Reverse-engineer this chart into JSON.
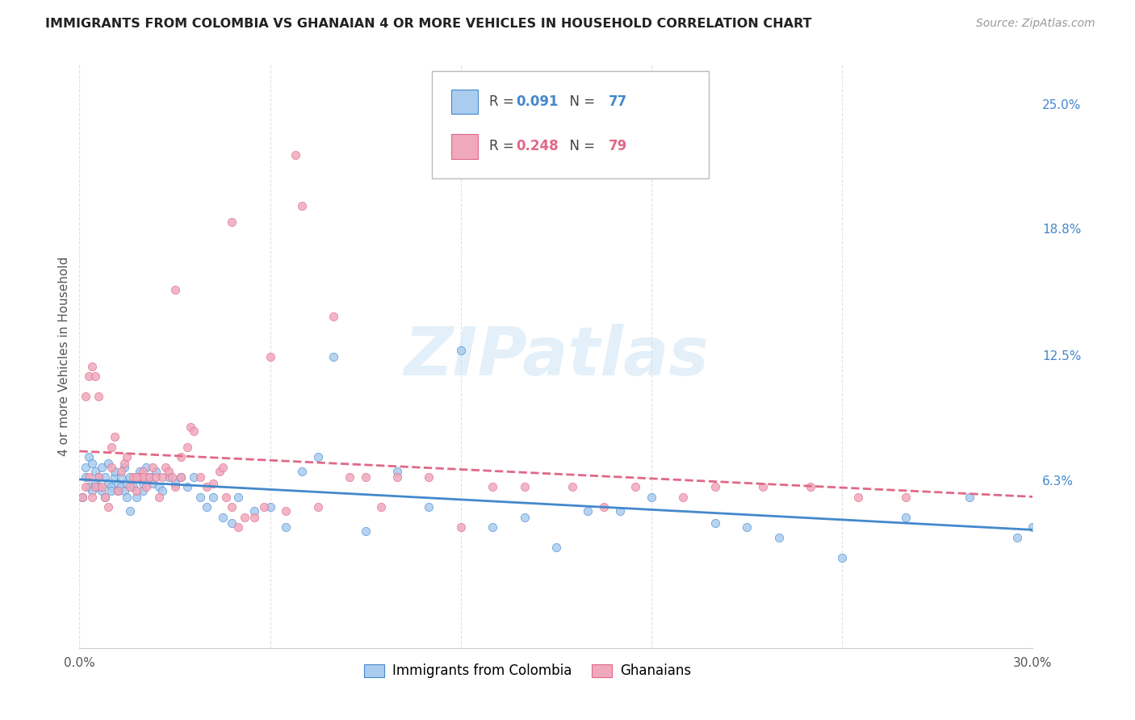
{
  "title": "IMMIGRANTS FROM COLOMBIA VS GHANAIAN 4 OR MORE VEHICLES IN HOUSEHOLD CORRELATION CHART",
  "source": "Source: ZipAtlas.com",
  "ylabel": "4 or more Vehicles in Household",
  "xlim": [
    0.0,
    0.3
  ],
  "ylim": [
    -0.02,
    0.27
  ],
  "ytick_labels": [
    "6.3%",
    "12.5%",
    "18.8%",
    "25.0%"
  ],
  "ytick_values": [
    0.063,
    0.125,
    0.188,
    0.25
  ],
  "xtick_labels": [
    "0.0%",
    "",
    "",
    "",
    "",
    "30.0%"
  ],
  "xtick_values": [
    0.0,
    0.06,
    0.12,
    0.18,
    0.24,
    0.3
  ],
  "colombia_R": 0.091,
  "colombia_N": 77,
  "ghana_R": 0.248,
  "ghana_N": 79,
  "colombia_color": "#aaccee",
  "ghana_color": "#f0a8bc",
  "colombia_line_color": "#4488cc",
  "ghana_line_color": "#e06888",
  "watermark": "ZIPatlas",
  "colombia_scatter_x": [
    0.001,
    0.002,
    0.002,
    0.003,
    0.003,
    0.004,
    0.004,
    0.005,
    0.005,
    0.006,
    0.006,
    0.007,
    0.007,
    0.008,
    0.008,
    0.009,
    0.009,
    0.01,
    0.01,
    0.011,
    0.011,
    0.012,
    0.012,
    0.013,
    0.013,
    0.014,
    0.014,
    0.015,
    0.015,
    0.016,
    0.016,
    0.017,
    0.018,
    0.019,
    0.02,
    0.02,
    0.021,
    0.022,
    0.023,
    0.024,
    0.025,
    0.026,
    0.028,
    0.03,
    0.032,
    0.034,
    0.036,
    0.038,
    0.04,
    0.042,
    0.045,
    0.048,
    0.05,
    0.055,
    0.06,
    0.065,
    0.07,
    0.08,
    0.09,
    0.1,
    0.11,
    0.12,
    0.13,
    0.15,
    0.17,
    0.2,
    0.21,
    0.24,
    0.26,
    0.28,
    0.295,
    0.3,
    0.22,
    0.18,
    0.16,
    0.14,
    0.075
  ],
  "colombia_scatter_y": [
    0.055,
    0.065,
    0.07,
    0.06,
    0.075,
    0.058,
    0.072,
    0.062,
    0.068,
    0.06,
    0.065,
    0.058,
    0.07,
    0.055,
    0.065,
    0.062,
    0.072,
    0.06,
    0.058,
    0.065,
    0.068,
    0.062,
    0.058,
    0.06,
    0.065,
    0.058,
    0.07,
    0.055,
    0.062,
    0.048,
    0.065,
    0.06,
    0.055,
    0.068,
    0.062,
    0.058,
    0.07,
    0.065,
    0.062,
    0.068,
    0.06,
    0.058,
    0.065,
    0.062,
    0.065,
    0.06,
    0.065,
    0.055,
    0.05,
    0.055,
    0.045,
    0.042,
    0.055,
    0.048,
    0.05,
    0.04,
    0.068,
    0.125,
    0.038,
    0.068,
    0.05,
    0.128,
    0.04,
    0.03,
    0.048,
    0.042,
    0.04,
    0.025,
    0.045,
    0.055,
    0.035,
    0.04,
    0.035,
    0.055,
    0.048,
    0.045,
    0.075
  ],
  "ghana_scatter_x": [
    0.001,
    0.002,
    0.002,
    0.003,
    0.003,
    0.004,
    0.004,
    0.005,
    0.005,
    0.006,
    0.006,
    0.007,
    0.008,
    0.009,
    0.01,
    0.01,
    0.011,
    0.012,
    0.013,
    0.014,
    0.015,
    0.016,
    0.017,
    0.018,
    0.019,
    0.02,
    0.02,
    0.021,
    0.022,
    0.023,
    0.024,
    0.025,
    0.026,
    0.027,
    0.028,
    0.029,
    0.03,
    0.03,
    0.032,
    0.034,
    0.035,
    0.036,
    0.038,
    0.04,
    0.042,
    0.044,
    0.045,
    0.046,
    0.048,
    0.05,
    0.052,
    0.055,
    0.058,
    0.06,
    0.065,
    0.068,
    0.07,
    0.075,
    0.08,
    0.085,
    0.09,
    0.095,
    0.1,
    0.11,
    0.12,
    0.13,
    0.14,
    0.155,
    0.165,
    0.175,
    0.19,
    0.2,
    0.215,
    0.23,
    0.245,
    0.26,
    0.048,
    0.032,
    0.018
  ],
  "ghana_scatter_y": [
    0.055,
    0.06,
    0.105,
    0.065,
    0.115,
    0.12,
    0.055,
    0.06,
    0.115,
    0.065,
    0.105,
    0.06,
    0.055,
    0.05,
    0.07,
    0.08,
    0.085,
    0.058,
    0.068,
    0.072,
    0.075,
    0.06,
    0.065,
    0.058,
    0.065,
    0.068,
    0.065,
    0.06,
    0.065,
    0.07,
    0.065,
    0.055,
    0.065,
    0.07,
    0.068,
    0.065,
    0.06,
    0.158,
    0.075,
    0.08,
    0.09,
    0.088,
    0.065,
    0.06,
    0.062,
    0.068,
    0.07,
    0.055,
    0.05,
    0.04,
    0.045,
    0.045,
    0.05,
    0.125,
    0.048,
    0.225,
    0.2,
    0.05,
    0.145,
    0.065,
    0.065,
    0.05,
    0.065,
    0.065,
    0.04,
    0.06,
    0.06,
    0.06,
    0.05,
    0.06,
    0.055,
    0.06,
    0.06,
    0.06,
    0.055,
    0.055,
    0.192,
    0.065,
    0.065
  ]
}
